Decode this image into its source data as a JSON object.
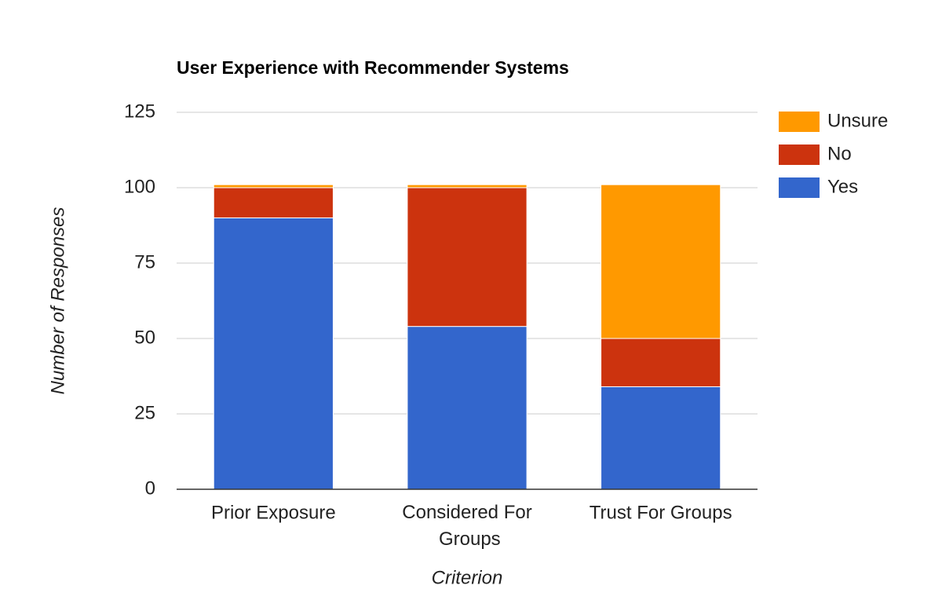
{
  "chart_data": {
    "type": "stacked-bar",
    "title": "User Experience with Recommender Systems",
    "x_label": "Criterion",
    "y_label": "Number of Responses",
    "categories": [
      "Prior Exposure",
      "Considered For Groups",
      "Trust For Groups"
    ],
    "series": [
      {
        "name": "Yes",
        "color": "#3366cc",
        "values": [
          90,
          54,
          34
        ]
      },
      {
        "name": "No",
        "color": "#cc330e",
        "values": [
          10,
          46,
          16
        ]
      },
      {
        "name": "Unsure",
        "color": "#ff9900",
        "values": [
          1,
          1,
          51
        ]
      }
    ],
    "ylim": [
      0,
      125
    ],
    "yticks": [
      0,
      25,
      50,
      75,
      100,
      125
    ],
    "grid": true,
    "legend": "right"
  }
}
